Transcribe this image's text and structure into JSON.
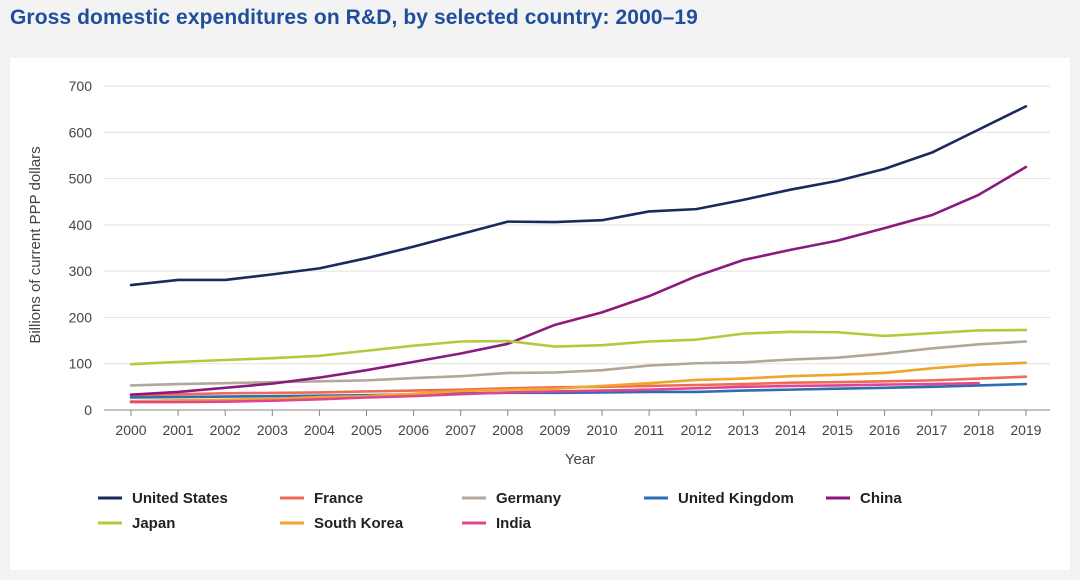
{
  "title": "Gross domestic expenditures on R&D, by selected country: 2000–19",
  "chart_data": {
    "type": "line",
    "title": "Gross domestic expenditures on R&D, by selected country: 2000–19",
    "xlabel": "Year",
    "ylabel": "Billions of current PPP dollars",
    "ylim": [
      0,
      700
    ],
    "yticks": [
      0,
      100,
      200,
      300,
      400,
      500,
      600,
      700
    ],
    "grid": true,
    "legend_position": "bottom",
    "categories": [
      "2000",
      "2001",
      "2002",
      "2003",
      "2004",
      "2005",
      "2006",
      "2007",
      "2008",
      "2009",
      "2010",
      "2011",
      "2012",
      "2013",
      "2014",
      "2015",
      "2016",
      "2017",
      "2018",
      "2019"
    ],
    "series": [
      {
        "name": "United States",
        "color": "#1a2a5e",
        "values": [
          270,
          281,
          281,
          293,
          306,
          328,
          353,
          380,
          407,
          406,
          410,
          429,
          434,
          454,
          476,
          495,
          521,
          556,
          606,
          656
        ]
      },
      {
        "name": "France",
        "color": "#ef6b55",
        "values": [
          32,
          34,
          36,
          37,
          38,
          40,
          42,
          44,
          47,
          49,
          50,
          52,
          54,
          56,
          59,
          60,
          62,
          64,
          68,
          72
        ]
      },
      {
        "name": "Germany",
        "color": "#b3a79a",
        "values": [
          53,
          56,
          58,
          60,
          62,
          64,
          69,
          73,
          80,
          81,
          86,
          96,
          101,
          103,
          109,
          113,
          122,
          133,
          142,
          148
        ]
      },
      {
        "name": "United Kingdom",
        "color": "#2d6db5",
        "values": [
          27,
          28,
          29,
          30,
          31,
          32,
          34,
          36,
          37,
          37,
          38,
          39,
          39,
          42,
          44,
          46,
          48,
          50,
          53,
          56
        ]
      },
      {
        "name": "China",
        "color": "#8b1a7e",
        "values": [
          33,
          39,
          48,
          57,
          70,
          86,
          104,
          122,
          143,
          184,
          211,
          246,
          289,
          324,
          346,
          366,
          393,
          421,
          465,
          525
        ]
      },
      {
        "name": "Japan",
        "color": "#b6c93d",
        "values": [
          99,
          104,
          108,
          112,
          117,
          128,
          139,
          148,
          149,
          137,
          140,
          148,
          152,
          165,
          169,
          168,
          160,
          166,
          172,
          173
        ]
      },
      {
        "name": "South Korea",
        "color": "#f0a52b",
        "values": [
          19,
          21,
          22,
          24,
          28,
          30,
          35,
          41,
          44,
          46,
          52,
          58,
          65,
          68,
          73,
          76,
          80,
          90,
          98,
          102
        ]
      },
      {
        "name": "India",
        "color": "#e0468f",
        "values": [
          17,
          17,
          18,
          20,
          23,
          27,
          30,
          34,
          38,
          40,
          42,
          44,
          47,
          50,
          52,
          53,
          55,
          56,
          58,
          null
        ]
      }
    ]
  }
}
